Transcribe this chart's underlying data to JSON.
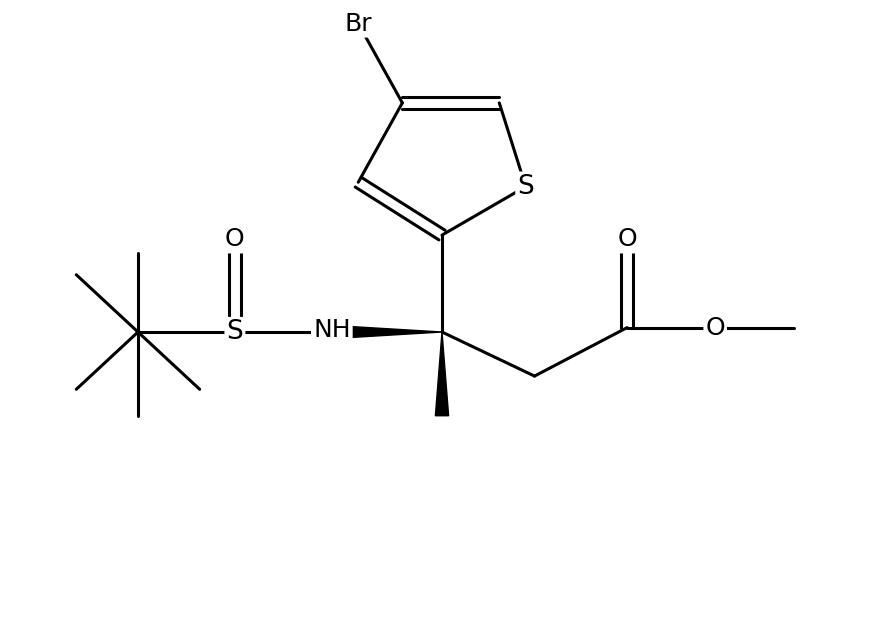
{
  "background_color": "#ffffff",
  "line_color": "#000000",
  "lw": 2.2,
  "fs": 17,
  "figsize": [
    8.84,
    6.42
  ],
  "dpi": 100,
  "xlim": [
    0,
    10
  ],
  "ylim": [
    0,
    7.25
  ]
}
